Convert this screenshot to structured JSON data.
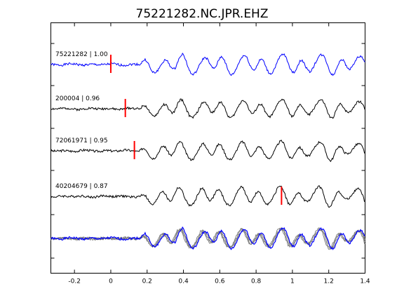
{
  "chart_data": {
    "type": "line",
    "title": "75221282.NC.JPR.EHZ",
    "xlabel": "",
    "ylabel": "",
    "xlim": [
      -0.33,
      1.4
    ],
    "xticks": [
      -0.2,
      0,
      0.2,
      0.4,
      0.6,
      0.8,
      1,
      1.2,
      1.4
    ],
    "xtick_labels": [
      "-0.2",
      "0",
      "0.2",
      "0.4",
      "0.6",
      "0.8",
      "1",
      "1.2",
      "1.4"
    ],
    "grid": false,
    "colors": {
      "master": "#0000ff",
      "trace": "#000000",
      "pick": "#ff0000",
      "overlay": "#808080"
    },
    "series": [
      {
        "name": "75221282 | 1.00",
        "role": "master",
        "pick_time": 0.0,
        "onset": 0.16,
        "amp": 1.0,
        "seed": 1
      },
      {
        "name": "200004 | 0.96",
        "role": "trace",
        "pick_time": 0.08,
        "onset": 0.16,
        "amp": 0.9,
        "seed": 2
      },
      {
        "name": "72061971 | 0.95",
        "role": "trace",
        "pick_time": 0.13,
        "onset": 0.16,
        "amp": 0.9,
        "seed": 3
      },
      {
        "name": "40204679 | 0.87",
        "role": "trace",
        "pick_time": 0.94,
        "onset": 0.16,
        "amp": 0.95,
        "seed": 4
      }
    ],
    "overlay": {
      "role": "stack",
      "includes": [
        "75221282 | 1.00",
        "200004 | 0.96",
        "72061971 | 0.95",
        "40204679 | 0.87"
      ]
    }
  }
}
